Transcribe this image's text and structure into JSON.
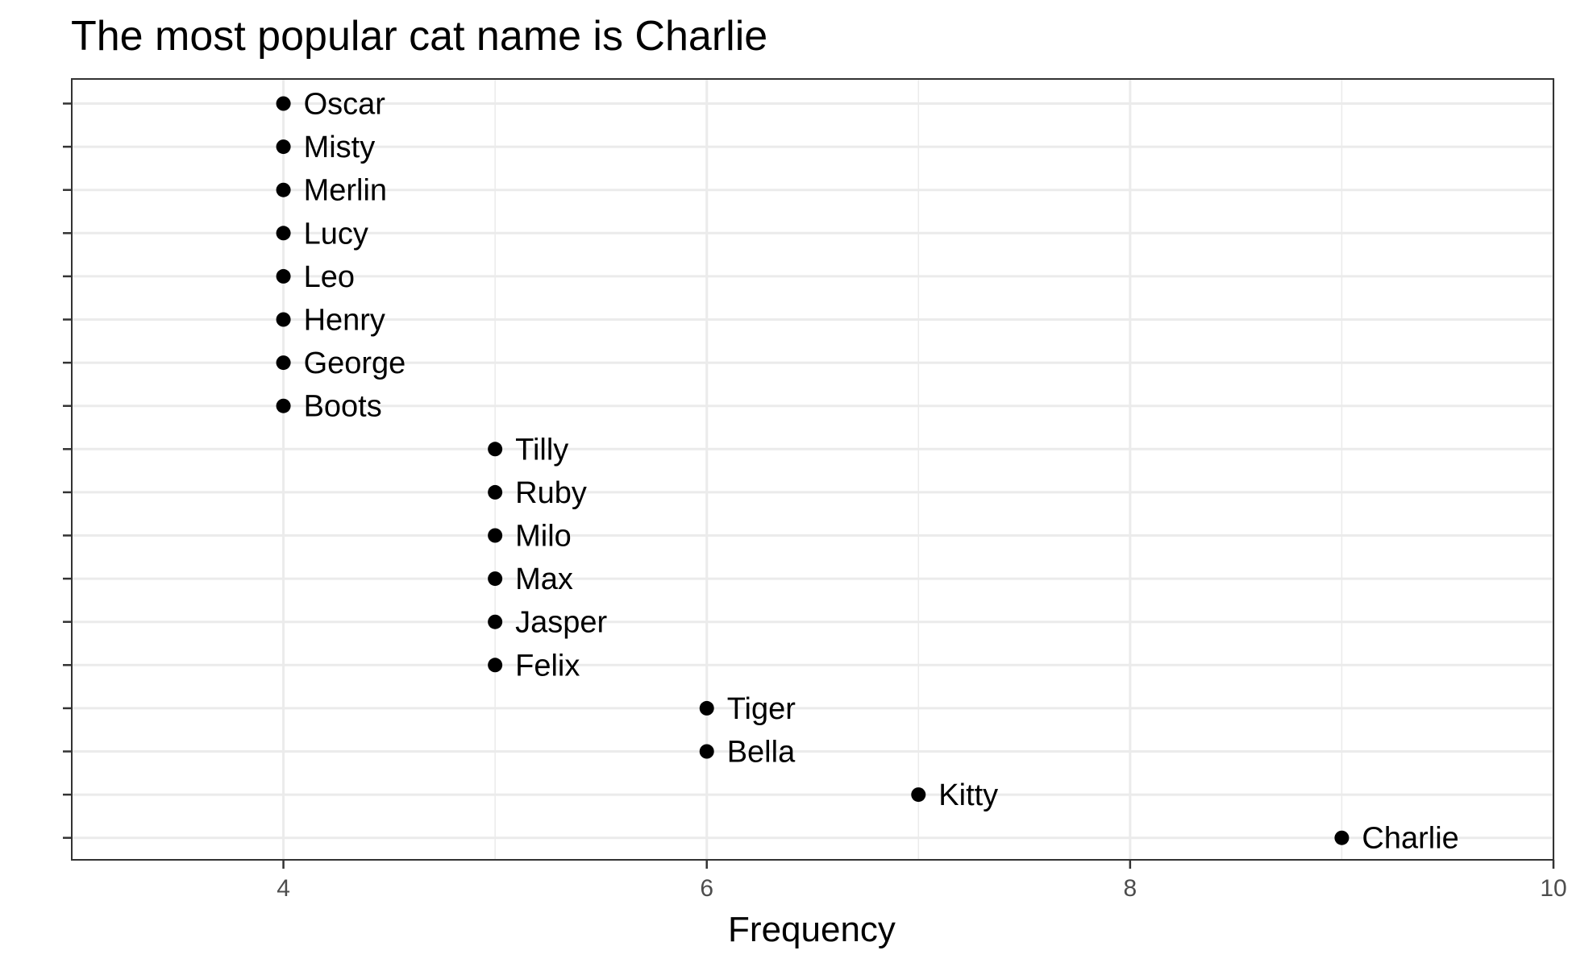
{
  "chart_data": {
    "type": "scatter",
    "title": "The most popular cat name is Charlie",
    "xlabel": "Frequency",
    "ylabel": "",
    "xlim": [
      3,
      10
    ],
    "xticks": [
      4,
      6,
      8,
      10
    ],
    "grid": true,
    "points": [
      {
        "name": "Oscar",
        "value": 4
      },
      {
        "name": "Misty",
        "value": 4
      },
      {
        "name": "Merlin",
        "value": 4
      },
      {
        "name": "Lucy",
        "value": 4
      },
      {
        "name": "Leo",
        "value": 4
      },
      {
        "name": "Henry",
        "value": 4
      },
      {
        "name": "George",
        "value": 4
      },
      {
        "name": "Boots",
        "value": 4
      },
      {
        "name": "Tilly",
        "value": 5
      },
      {
        "name": "Ruby",
        "value": 5
      },
      {
        "name": "Milo",
        "value": 5
      },
      {
        "name": "Max",
        "value": 5
      },
      {
        "name": "Jasper",
        "value": 5
      },
      {
        "name": "Felix",
        "value": 5
      },
      {
        "name": "Tiger",
        "value": 6
      },
      {
        "name": "Bella",
        "value": 6
      },
      {
        "name": "Kitty",
        "value": 7
      },
      {
        "name": "Charlie",
        "value": 9
      }
    ],
    "colors": {
      "point": "#000000",
      "grid": "#ebebeb",
      "panel_border": "#333333",
      "tick_text": "#4d4d4d"
    }
  }
}
